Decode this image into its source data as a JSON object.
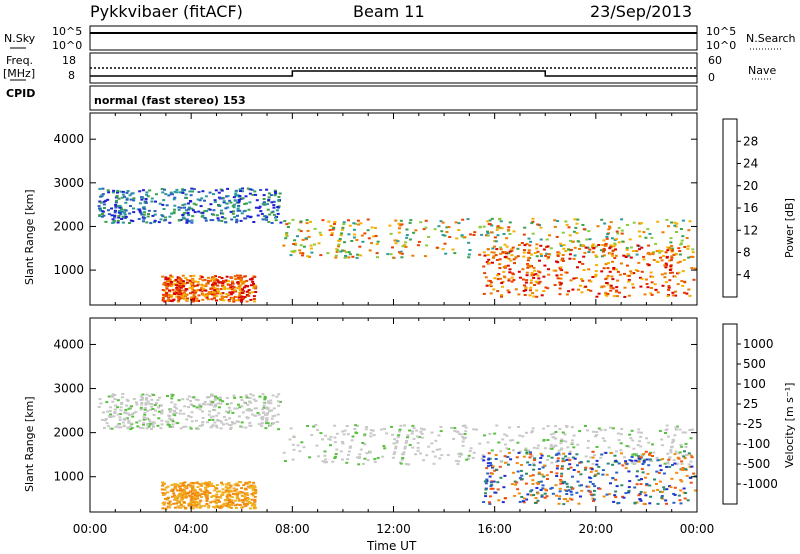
{
  "header": {
    "station": "Pykkvibaer (fitACF)",
    "beam": "Beam 11",
    "date": "23/Sep/2013"
  },
  "top_panels": {
    "nsky_label": "N.Sky",
    "nsky_ticks": [
      "10^5",
      "10^0"
    ],
    "nsearch_label": "N.Search",
    "nsearch_ticks": [
      "10^5",
      "10^0"
    ],
    "freq_label": "Freq.",
    "freq_unit": "[MHz]",
    "freq_ticks": [
      "18",
      "8"
    ],
    "nave_label": "Nave",
    "nave_ticks": [
      "60",
      "0"
    ],
    "cpid_label": "CPID",
    "cpid_text": "normal (fast stereo) 153"
  },
  "chart_data": [
    {
      "type": "heatmap",
      "panel": "power",
      "ylabel": "Slant Range [km]",
      "yticks": [
        1000,
        2000,
        3000,
        4000
      ],
      "ylim": [
        200,
        4600
      ],
      "xlim": [
        0,
        24
      ],
      "colorbar": {
        "label": "Power [dB]",
        "ticks": [
          "4",
          "8",
          "12",
          "16",
          "20",
          "24",
          "28"
        ],
        "colors": [
          "#1f1fd6",
          "#2a5fc4",
          "#2a9a9a",
          "#3aa04a",
          "#8acb3a",
          "#f2e31a",
          "#f6b000",
          "#f07a00",
          "#e84000",
          "#d80000"
        ]
      }
    },
    {
      "type": "heatmap",
      "panel": "velocity",
      "ylabel": "Slant Range [km]",
      "yticks": [
        1000,
        2000,
        3000,
        4000
      ],
      "ylim": [
        200,
        4600
      ],
      "xlim": [
        0,
        24
      ],
      "colorbar": {
        "label": "Velocity [m s⁻¹]",
        "ticks": [
          "1000",
          "500",
          "100",
          "25",
          "-25",
          "-100",
          "-500",
          "-1000"
        ],
        "colors": [
          "#1f2fd0",
          "#2a60c8",
          "#2a8a6a",
          "#5ac040",
          "#c8c8c8",
          "#f0b020",
          "#f08a10",
          "#f05010",
          "#e01010"
        ]
      }
    }
  ],
  "xaxis": {
    "ticks": [
      "00:00",
      "04:00",
      "08:00",
      "12:00",
      "16:00",
      "20:00",
      "00:00"
    ],
    "label": "Time UT"
  }
}
